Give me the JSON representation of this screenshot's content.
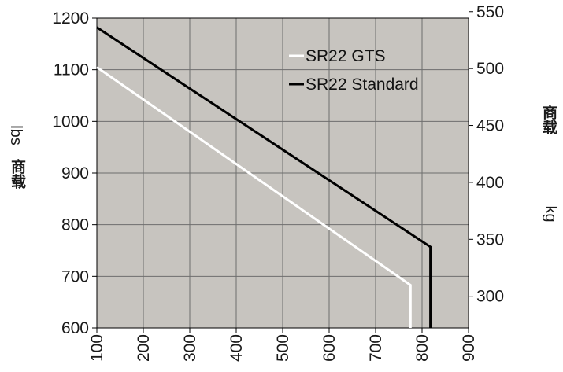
{
  "chart_data": {
    "type": "line",
    "x": [
      100,
      200,
      300,
      400,
      500,
      600,
      700,
      800,
      900
    ],
    "xlim": [
      100,
      900
    ],
    "x_ticks": [
      "100",
      "200",
      "300",
      "400",
      "500",
      "600",
      "700",
      "800",
      "900"
    ],
    "y_left": {
      "unit_label": "lbs",
      "cjk_label": "商载",
      "ylim": [
        600,
        1200
      ],
      "ticks": [
        "600",
        "700",
        "800",
        "900",
        "1000",
        "1100",
        "1200"
      ]
    },
    "y_right": {
      "unit_label": "kg",
      "cjk_label": "商载",
      "ticks": [
        "300",
        "350",
        "400",
        "450",
        "500",
        "550"
      ]
    },
    "series": [
      {
        "name": "SR22 GTS",
        "color": "#ffffff",
        "points": [
          [
            100,
            1105
          ],
          [
            775,
            683
          ],
          [
            775,
            600
          ]
        ]
      },
      {
        "name": "SR22 Standard",
        "color": "#000000",
        "points": [
          [
            100,
            1182
          ],
          [
            818,
            757
          ],
          [
            818,
            600
          ]
        ]
      }
    ],
    "grid": true,
    "legend_position": "top-right",
    "plot_background": "#c7c4bf"
  }
}
